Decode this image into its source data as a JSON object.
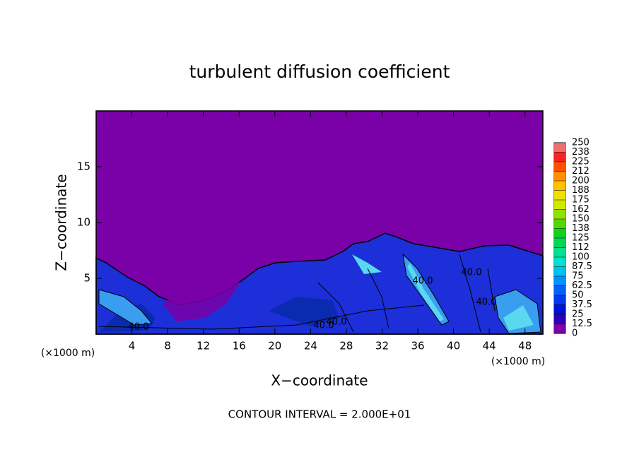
{
  "chart_data": {
    "type": "contour",
    "title": "turbulent diffusion coefficient",
    "x_label": "X−coordinate",
    "y_label": "Z−coordinate",
    "x_unit": "(×1000 m)",
    "y_unit": "(×1000 m)",
    "footnote": "CONTOUR INTERVAL = 2.000E+01",
    "contour_labels": [
      "40.0",
      "40.0",
      "40.0",
      "40.0",
      "40.0",
      "40.0"
    ],
    "xlim": [
      0,
      50
    ],
    "xticks": [
      4,
      8,
      12,
      16,
      20,
      24,
      28,
      32,
      36,
      40,
      44,
      48
    ],
    "ylim": [
      0,
      20
    ],
    "yticks": [
      5,
      10,
      15
    ],
    "colorbar": {
      "ticks": [
        0,
        12.5,
        25,
        37.5,
        50,
        62.5,
        75,
        87.5,
        100,
        {
          "value": 112.5,
          "label": "112"
        },
        125,
        {
          "value": 137.5,
          "label": "138"
        },
        150,
        {
          "value": 162.5,
          "label": "162"
        },
        175,
        {
          "value": 187.5,
          "label": "188"
        },
        200,
        {
          "value": 212.5,
          "label": "212"
        },
        225,
        {
          "value": 237.5,
          "label": "238"
        },
        250
      ],
      "colors": [
        "#7a00a8",
        "#2a00b8",
        "#0010d8",
        "#0038f0",
        "#0060ff",
        "#0090ff",
        "#00c0f0",
        "#00e0d0",
        "#00e090",
        "#00d850",
        "#10d020",
        "#50d800",
        "#90e000",
        "#d0e800",
        "#f0e000",
        "#ffc000",
        "#ff9000",
        "#ff5000",
        "#ff2020",
        "#f07070"
      ]
    }
  }
}
